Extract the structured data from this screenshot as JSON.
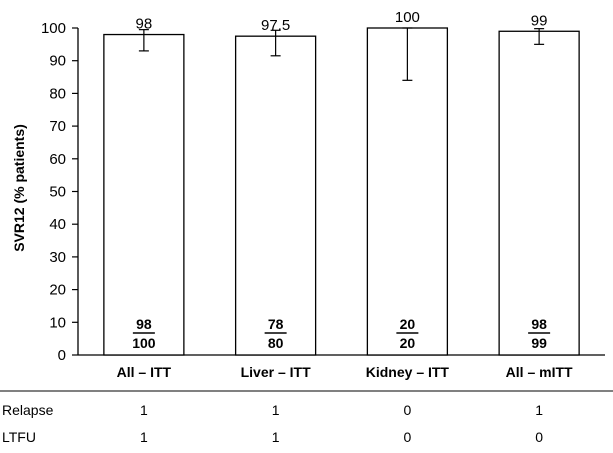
{
  "chart_data": {
    "type": "bar",
    "title": "",
    "xlabel": "",
    "ylabel": "SVR12 (% patients)",
    "ylim": [
      0,
      100
    ],
    "yticks": [
      0,
      10,
      20,
      30,
      40,
      50,
      60,
      70,
      80,
      90,
      100
    ],
    "grid": false,
    "categories": [
      "All – ITT",
      "Liver – ITT",
      "Kidney – ITT",
      "All – mITT"
    ],
    "values": [
      98,
      97.5,
      100,
      99
    ],
    "value_labels": [
      "98",
      "97.5",
      "100",
      "99"
    ],
    "error_low": [
      93,
      91.5,
      84,
      95
    ],
    "error_high": [
      99.5,
      99.3,
      100,
      99.8
    ],
    "fractions": [
      {
        "numerator": "98",
        "denominator": "100"
      },
      {
        "numerator": "78",
        "denominator": "80"
      },
      {
        "numerator": "20",
        "denominator": "20"
      },
      {
        "numerator": "98",
        "denominator": "99"
      }
    ],
    "bar_fill": "#ffffff",
    "bar_stroke": "#000000"
  },
  "table": {
    "rows": [
      {
        "label": "Relapse",
        "values": [
          "1",
          "1",
          "0",
          "1"
        ]
      },
      {
        "label": "LTFU",
        "values": [
          "1",
          "1",
          "0",
          "0"
        ]
      }
    ]
  }
}
